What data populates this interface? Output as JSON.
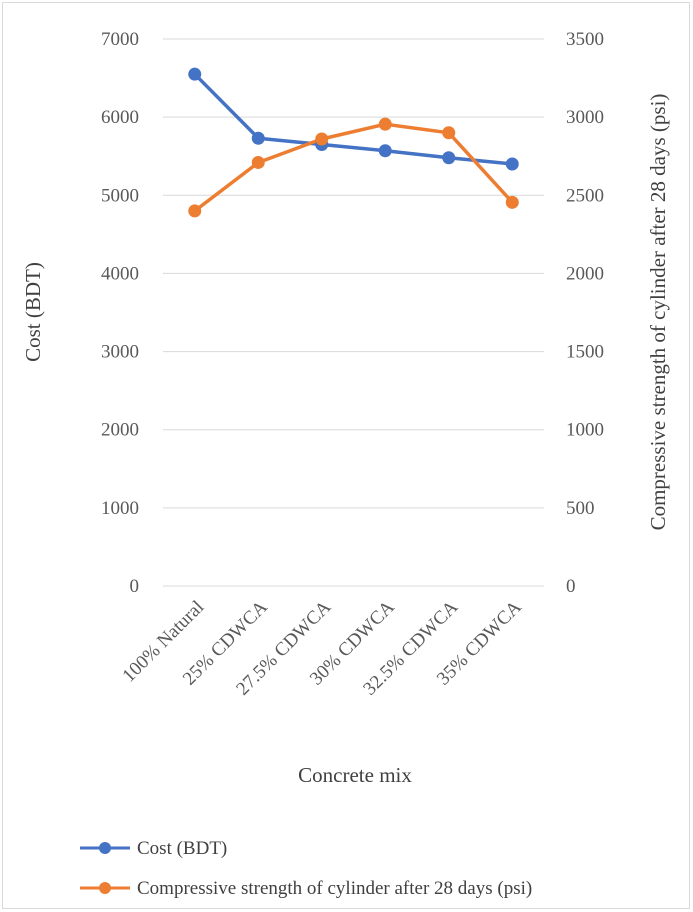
{
  "chart_data": {
    "type": "line",
    "xlabel": "Concrete mix",
    "ylabel_left": "Cost (BDT)",
    "ylabel_right": "Compressive strength of cylinder after 28 days (psi)",
    "categories": [
      "100% Natural",
      "25% CDWCA",
      "27.5% CDWCA",
      "30% CDWCA",
      "32.5% CDWCA",
      "35% CDWCA"
    ],
    "ylim_left": [
      0,
      7000
    ],
    "ylim_right": [
      0,
      3500
    ],
    "yticks_left": [
      "0",
      "1000",
      "2000",
      "3000",
      "4000",
      "5000",
      "6000",
      "7000"
    ],
    "yticks_right": [
      "0",
      "500",
      "1000",
      "1500",
      "2000",
      "2500",
      "3000",
      "3500"
    ],
    "grid": true,
    "legend_position": "bottom",
    "series": [
      {
        "name": "Cost (BDT)",
        "axis": "left",
        "color": "#4472C4",
        "values": [
          6550,
          5730,
          5650,
          5570,
          5480,
          5400
        ]
      },
      {
        "name": "Compressive strength of cylinder after 28 days (psi)",
        "axis": "right",
        "color": "#ED7D31",
        "values": [
          2400,
          2710,
          2860,
          2955,
          2900,
          2455
        ]
      }
    ]
  }
}
